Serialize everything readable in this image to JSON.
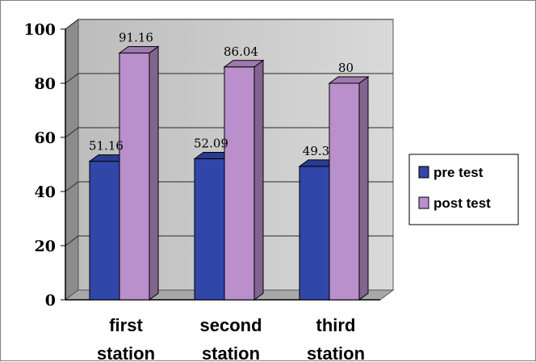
{
  "chart_data": {
    "type": "bar",
    "title": "",
    "xlabel": "",
    "ylabel": "",
    "categories": [
      "first station",
      "second station",
      "third station"
    ],
    "series": [
      {
        "name": "pre test",
        "values": [
          51.16,
          52.09,
          49.3
        ],
        "labels": [
          "51.16",
          "52.09",
          "49.3"
        ],
        "color": "#3046a8"
      },
      {
        "name": "post test",
        "values": [
          91.16,
          86.04,
          80
        ],
        "labels": [
          "91.16",
          "86.04",
          "80"
        ],
        "color": "#b98fcc"
      }
    ],
    "ylim": [
      0,
      100
    ],
    "yticks": [
      0,
      20,
      40,
      60,
      80,
      100
    ],
    "grid": true,
    "legend": "right",
    "background": "#c8c8c8"
  }
}
